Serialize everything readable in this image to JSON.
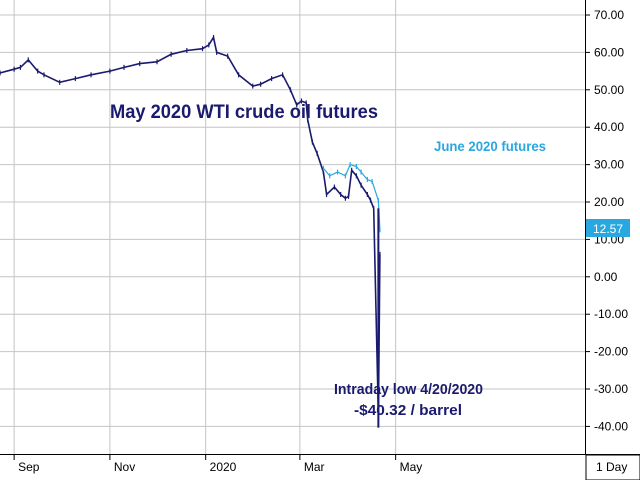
{
  "chart_data": {
    "type": "line",
    "title": "",
    "xlabel": "",
    "ylabel": "",
    "ylim": [
      -45,
      72
    ],
    "grid": true,
    "legend": "none",
    "y_ticks": [
      "70.00",
      "60.00",
      "50.00",
      "40.00",
      "30.00",
      "20.00",
      "10.00",
      "0.00",
      "-10.00",
      "-20.00",
      "-30.00",
      "-40.00"
    ],
    "x_ticks": [
      "Sep",
      "Nov",
      "2020",
      "Mar",
      "May"
    ],
    "period_label": "1 Day",
    "last_price_label": "12.57",
    "annotations": {
      "may_contract": "May 2020 WTI crude oil futures",
      "june_contract": "June 2020 futures",
      "low_line1": "Intraday low 4/20/2020",
      "low_line2": "-$40.32 / barrel"
    },
    "series": [
      {
        "name": "May 2020 WTI crude oil futures",
        "color": "#1a1a6e",
        "x": [
          "2019-08-23",
          "2019-09-01",
          "2019-09-05",
          "2019-09-10",
          "2019-09-16",
          "2019-09-20",
          "2019-09-30",
          "2019-10-10",
          "2019-10-20",
          "2019-11-01",
          "2019-11-10",
          "2019-11-20",
          "2019-12-01",
          "2019-12-10",
          "2019-12-20",
          "2019-12-30",
          "2020-01-03",
          "2020-01-06",
          "2020-01-08",
          "2020-01-15",
          "2020-01-22",
          "2020-01-31",
          "2020-02-05",
          "2020-02-12",
          "2020-02-19",
          "2020-02-24",
          "2020-02-28",
          "2020-03-02",
          "2020-03-05",
          "2020-03-06",
          "2020-03-09",
          "2020-03-12",
          "2020-03-16",
          "2020-03-18",
          "2020-03-23",
          "2020-03-27",
          "2020-03-30",
          "2020-04-01",
          "2020-04-03",
          "2020-04-06",
          "2020-04-09",
          "2020-04-13",
          "2020-04-15",
          "2020-04-17",
          "2020-04-20",
          "2020-04-21"
        ],
        "values": [
          54.5,
          55.5,
          56.0,
          58.0,
          55.0,
          54.0,
          52.0,
          53.0,
          54.0,
          55.0,
          56.0,
          57.0,
          57.5,
          59.5,
          60.5,
          61.0,
          62.0,
          64.0,
          60.0,
          59.0,
          54.0,
          51.0,
          51.5,
          53.0,
          54.0,
          50.0,
          46.0,
          47.0,
          46.5,
          42.0,
          36.0,
          33.0,
          28.0,
          22.0,
          24.0,
          22.0,
          21.0,
          21.5,
          28.5,
          27.0,
          24.5,
          22.0,
          20.5,
          18.3,
          -37.6,
          6.0
        ]
      },
      {
        "name": "June 2020 futures",
        "color": "#29a8e0",
        "x": [
          "2020-03-16",
          "2020-03-20",
          "2020-03-25",
          "2020-03-30",
          "2020-04-02",
          "2020-04-06",
          "2020-04-09",
          "2020-04-13",
          "2020-04-16",
          "2020-04-20",
          "2020-04-21"
        ],
        "values": [
          29.0,
          27.0,
          28.0,
          27.0,
          30.0,
          29.5,
          28.0,
          26.0,
          25.5,
          20.4,
          12.57
        ]
      }
    ],
    "intraday_low": -40.32
  }
}
